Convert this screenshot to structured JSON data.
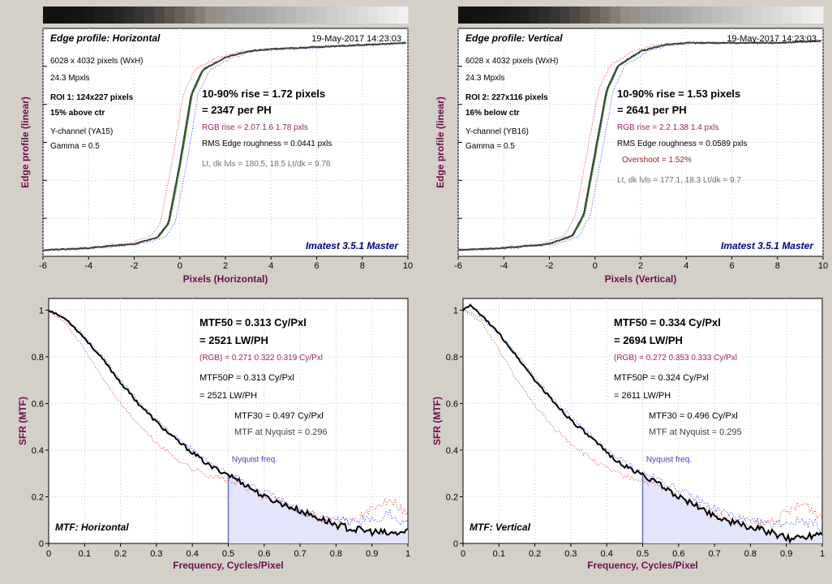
{
  "colors": {
    "background": "#d4d0c8",
    "plot_bg": "#ffffff",
    "axis_label": "#6b0f4f",
    "rgb_text": "#9b1f6a",
    "gray_text": "#707070",
    "brand": "#000080",
    "nyquist_fill": "#e4e4fb",
    "nyquist_line": "#6b6bd0",
    "nyquist_text": "#4040b0",
    "red_series": "#e03030",
    "green_series": "#30a030",
    "blue_series": "#3040e0",
    "y_series": "#000000"
  },
  "edge_panels": [
    {
      "title": "Edge profile: Horizontal",
      "date": "19-May-2017 14:23:03",
      "info": [
        "6028 x 4032 pixels (WxH)",
        "24.3 Mpxls"
      ],
      "roi": [
        "ROI 1:  124x227 pixels",
        "15% above ctr"
      ],
      "channel": [
        "Y-channel  (YA15)",
        "Gamma = 0.5"
      ],
      "rise": "10-90% rise = 1.72 pixels",
      "per_ph": "= 2347 per PH",
      "rgb_rise": "RGB rise = 2.07  1.6  1.78 pxls",
      "roughness": "RMS Edge roughness = 0.0441 pxls",
      "overshoot": "",
      "levels": "Lt, dk lvls = 180.5, 18.5   Lt/dk = 9.78",
      "brand": "Imatest 3.5.1 Master",
      "xlabel": "Pixels (Horizontal)",
      "ylabel": "Edge profile (linear)",
      "xticks": [
        "-6",
        "-4",
        "-2",
        "0",
        "2",
        "4",
        "6",
        "8",
        "10"
      ]
    },
    {
      "title": "Edge profile: Vertical",
      "date": "19-May-2017 14:23:03",
      "info": [
        "6028 x 4032 pixels (WxH)",
        "24.3 Mpxls"
      ],
      "roi": [
        "ROI 2:  227x116 pixels",
        "16% below ctr"
      ],
      "channel": [
        "Y-channel  (YB16)",
        "Gamma = 0.5"
      ],
      "rise": "10-90% rise = 1.53 pixels",
      "per_ph": "= 2641 per PH",
      "rgb_rise": "RGB rise = 2.2  1.38  1.4 pxls",
      "roughness": "RMS Edge roughness = 0.0589 pxls",
      "overshoot": "Overshoot = 1.52%",
      "levels": "Lt, dk lvls = 177.1, 18.3   Lt/dk = 9.7",
      "brand": "Imatest 3.5.1 Master",
      "xlabel": "Pixels (Vertical)",
      "ylabel": "Edge profile (linear)",
      "xticks": [
        "-6",
        "-4",
        "-2",
        "0",
        "2",
        "4",
        "6",
        "8",
        "10"
      ]
    }
  ],
  "mtf_panels": [
    {
      "mtf50": "MTF50 = 0.313 Cy/Pxl",
      "lwph": "= 2521 LW/PH",
      "rgb": "(RGB) = 0.271  0.322  0.319 Cy/Pxl",
      "mtf50p": "MTF50P = 0.313 Cy/Pxl",
      "mtf50p_lwph": "= 2521 LW/PH",
      "mtf30": "MTF30 = 0.497 Cy/Pxl",
      "nyq_value": "MTF at Nyquist = 0.296",
      "nyq_label": "Nyquist freq.",
      "corner": "MTF: Horizontal",
      "xlabel": "Frequency, Cycles/Pixel",
      "ylabel": "SFR (MTF)",
      "xticks": [
        "0",
        "0.1",
        "0.2",
        "0.3",
        "0.4",
        "0.5",
        "0.6",
        "0.7",
        "0.8",
        "0.9",
        "1"
      ],
      "yticks": [
        "0",
        "0.2",
        "0.4",
        "0.6",
        "0.8",
        "1"
      ]
    },
    {
      "mtf50": "MTF50 = 0.334 Cy/Pxl",
      "lwph": "= 2694 LW/PH",
      "rgb": "(RGB) = 0.272  0.353  0.333 Cy/Pxl",
      "mtf50p": "MTF50P = 0.324 Cy/Pxl",
      "mtf50p_lwph": "= 2611 LW/PH",
      "mtf30": "MTF30 = 0.496 Cy/Pxl",
      "nyq_value": "MTF at Nyquist = 0.295",
      "nyq_label": "Nyquist freq.",
      "corner": "MTF: Vertical",
      "xlabel": "Frequency, Cycles/Pixel",
      "ylabel": "SFR (MTF)",
      "xticks": [
        "0",
        "0.1",
        "0.2",
        "0.3",
        "0.4",
        "0.5",
        "0.6",
        "0.7",
        "0.8",
        "0.9",
        "1"
      ],
      "yticks": [
        "0",
        "0.2",
        "0.4",
        "0.6",
        "0.8",
        "1"
      ]
    }
  ],
  "chart_data": [
    {
      "type": "line",
      "title": "Edge profile: Horizontal",
      "xlabel": "Pixels (Horizontal)",
      "ylabel": "Edge profile (linear)",
      "xlim": [
        -6,
        10
      ],
      "ylim": [
        0,
        1.1
      ],
      "series": [
        {
          "values_x": [
            -6,
            -4,
            -2,
            -1,
            -0.5,
            0,
            0.5,
            1,
            2,
            3,
            4,
            6,
            8,
            10
          ],
          "values_y": [
            0.03,
            0.04,
            0.06,
            0.09,
            0.16,
            0.45,
            0.78,
            0.9,
            0.96,
            0.99,
            1.0,
            1.01,
            1.02,
            1.03
          ]
        }
      ]
    },
    {
      "type": "line",
      "title": "Edge profile: Vertical",
      "xlabel": "Pixels (Vertical)",
      "ylabel": "Edge profile (linear)",
      "xlim": [
        -6,
        10
      ],
      "ylim": [
        0,
        1.1
      ],
      "series": [
        {
          "values_x": [
            -6,
            -4,
            -2,
            -1,
            -0.5,
            0,
            0.5,
            1,
            2,
            3,
            4,
            6,
            8,
            10
          ],
          "values_y": [
            0.03,
            0.04,
            0.06,
            0.1,
            0.2,
            0.5,
            0.8,
            0.92,
            0.99,
            1.02,
            1.03,
            1.03,
            1.03,
            1.04
          ]
        }
      ]
    },
    {
      "type": "line",
      "title": "",
      "xlabel": "Frequency, Cycles/Pixel",
      "ylabel": "SFR (MTF)",
      "xlim": [
        0,
        1
      ],
      "ylim": [
        0,
        1.05
      ],
      "series": [
        {
          "values_x": [
            0,
            0.05,
            0.1,
            0.15,
            0.2,
            0.25,
            0.3,
            0.35,
            0.4,
            0.45,
            0.5,
            0.55,
            0.6,
            0.65,
            0.7,
            0.75,
            0.8,
            0.85,
            0.9,
            0.95,
            1
          ],
          "values_y": [
            1.0,
            0.96,
            0.88,
            0.79,
            0.69,
            0.6,
            0.52,
            0.45,
            0.39,
            0.33,
            0.296,
            0.25,
            0.2,
            0.17,
            0.14,
            0.11,
            0.08,
            0.06,
            0.05,
            0.04,
            0.05
          ]
        },
        {
          "values_x": [
            0,
            0.05,
            0.1,
            0.15,
            0.2,
            0.25,
            0.3,
            0.35,
            0.4,
            0.45,
            0.5,
            0.55,
            0.6,
            0.65,
            0.7,
            0.75,
            0.8,
            0.85,
            0.9,
            0.95,
            1
          ],
          "values_y": [
            1.0,
            0.94,
            0.83,
            0.71,
            0.6,
            0.51,
            0.43,
            0.37,
            0.32,
            0.29,
            0.27,
            0.24,
            0.2,
            0.17,
            0.14,
            0.11,
            0.09,
            0.1,
            0.14,
            0.2,
            0.12
          ]
        },
        {
          "values_x": [
            0,
            0.05,
            0.1,
            0.15,
            0.2,
            0.25,
            0.3,
            0.35,
            0.4,
            0.45,
            0.5,
            0.55,
            0.6,
            0.65,
            0.7,
            0.75,
            0.8,
            0.85,
            0.9,
            0.95,
            1
          ],
          "values_y": [
            1.0,
            0.96,
            0.89,
            0.8,
            0.7,
            0.61,
            0.53,
            0.46,
            0.4,
            0.34,
            0.3,
            0.26,
            0.22,
            0.18,
            0.14,
            0.12,
            0.1,
            0.09,
            0.1,
            0.13,
            0.08
          ]
        }
      ]
    },
    {
      "type": "line",
      "title": "",
      "xlabel": "Frequency, Cycles/Pixel",
      "ylabel": "SFR (MTF)",
      "xlim": [
        0,
        1
      ],
      "ylim": [
        0,
        1.05
      ],
      "series": [
        {
          "values_x": [
            0,
            0.02,
            0.05,
            0.1,
            0.15,
            0.2,
            0.25,
            0.3,
            0.35,
            0.4,
            0.45,
            0.5,
            0.55,
            0.6,
            0.65,
            0.7,
            0.75,
            0.8,
            0.85,
            0.9,
            0.95,
            1
          ],
          "values_y": [
            1.0,
            1.02,
            0.98,
            0.9,
            0.8,
            0.7,
            0.61,
            0.53,
            0.46,
            0.39,
            0.33,
            0.295,
            0.25,
            0.2,
            0.16,
            0.12,
            0.09,
            0.07,
            0.05,
            0.02,
            0.03,
            0.05
          ]
        },
        {
          "values_x": [
            0,
            0.05,
            0.1,
            0.15,
            0.2,
            0.25,
            0.3,
            0.35,
            0.4,
            0.45,
            0.5,
            0.55,
            0.6,
            0.65,
            0.7,
            0.75,
            0.8,
            0.85,
            0.9,
            0.95,
            1
          ],
          "values_y": [
            1.0,
            0.95,
            0.83,
            0.7,
            0.59,
            0.5,
            0.43,
            0.37,
            0.32,
            0.29,
            0.27,
            0.24,
            0.2,
            0.17,
            0.13,
            0.1,
            0.08,
            0.09,
            0.13,
            0.17,
            0.11
          ]
        },
        {
          "values_x": [
            0,
            0.05,
            0.1,
            0.15,
            0.2,
            0.25,
            0.3,
            0.35,
            0.4,
            0.45,
            0.5,
            0.55,
            0.6,
            0.65,
            0.7,
            0.75,
            0.8,
            0.85,
            0.9,
            0.95,
            1
          ],
          "values_y": [
            1.0,
            0.97,
            0.9,
            0.81,
            0.71,
            0.62,
            0.54,
            0.47,
            0.4,
            0.35,
            0.3,
            0.27,
            0.23,
            0.19,
            0.15,
            0.12,
            0.09,
            0.08,
            0.09,
            0.1,
            0.07
          ]
        }
      ]
    }
  ]
}
